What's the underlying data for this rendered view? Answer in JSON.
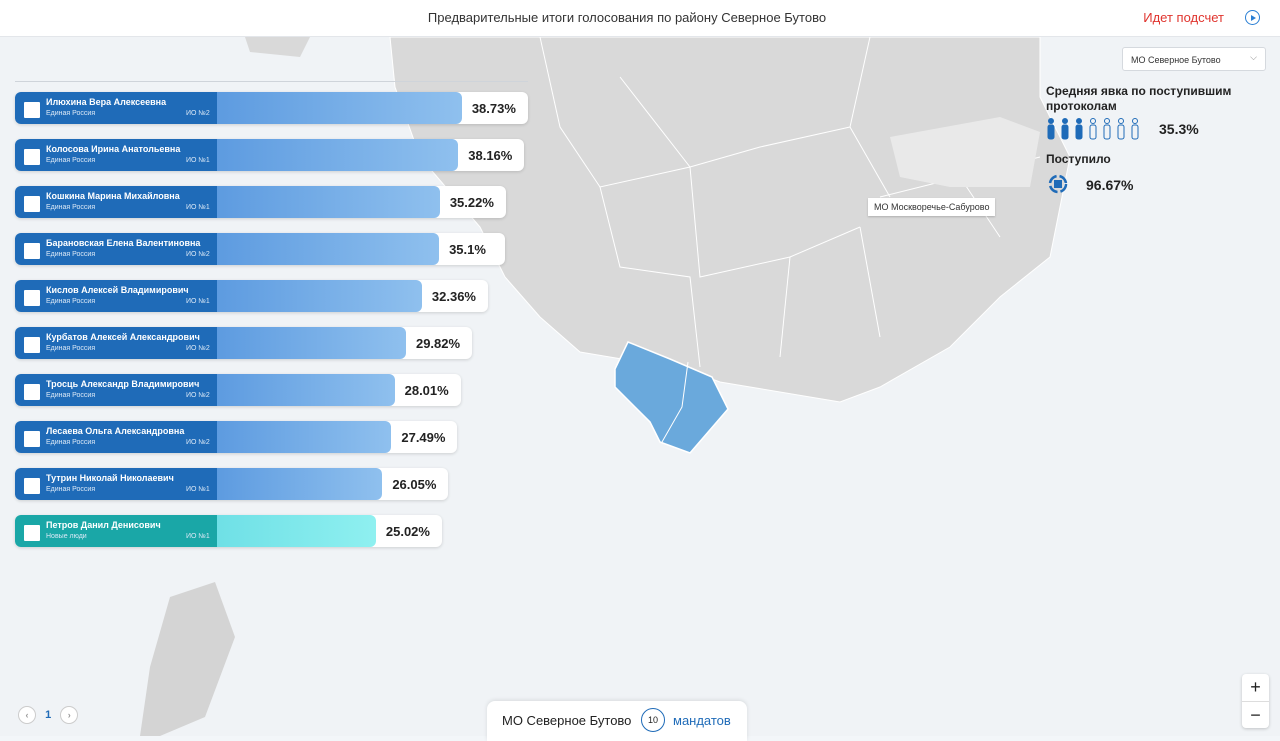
{
  "header": {
    "title": "Предварительные итоги голосования по району Северное Бутово",
    "status": "Идет подсчет"
  },
  "candidates": [
    {
      "name": "Илюхина Вера Алексеевна",
      "party": "Единая Россия",
      "district": "ИО №2",
      "value": 38.73,
      "value_label": "38.73%",
      "color": "#1f6bb8"
    },
    {
      "name": "Колосова Ирина Анатольевна",
      "party": "Единая Россия",
      "district": "ИО №1",
      "value": 38.16,
      "value_label": "38.16%",
      "color": "#1f6bb8"
    },
    {
      "name": "Кошкина Марина Михайловна",
      "party": "Единая Россия",
      "district": "ИО №1",
      "value": 35.22,
      "value_label": "35.22%",
      "color": "#1f6bb8"
    },
    {
      "name": "Барановская Елена Валентиновна",
      "party": "Единая Россия",
      "district": "ИО №2",
      "value": 35.1,
      "value_label": "35.1%",
      "color": "#1f6bb8"
    },
    {
      "name": "Кислов Алексей Владимирович",
      "party": "Единая Россия",
      "district": "ИО №1",
      "value": 32.36,
      "value_label": "32.36%",
      "color": "#1f6bb8"
    },
    {
      "name": "Курбатов Алексей Александрович",
      "party": "Единая Россия",
      "district": "ИО №2",
      "value": 29.82,
      "value_label": "29.82%",
      "color": "#1f6bb8"
    },
    {
      "name": "Тросць Александр Владимирович",
      "party": "Единая Россия",
      "district": "ИО №2",
      "value": 28.01,
      "value_label": "28.01%",
      "color": "#1f6bb8"
    },
    {
      "name": "Лесаева Ольга Александровна",
      "party": "Единая Россия",
      "district": "ИО №2",
      "value": 27.49,
      "value_label": "27.49%",
      "color": "#1f6bb8"
    },
    {
      "name": "Тутрин Николай Николаевич",
      "party": "Единая Россия",
      "district": "ИО №1",
      "value": 26.05,
      "value_label": "26.05%",
      "color": "#1f6bb8"
    },
    {
      "name": "Петров Данил Денисович",
      "party": "Новые люди",
      "district": "ИО №1",
      "value": 25.02,
      "value_label": "25.02%",
      "color": "#1aa7a7"
    }
  ],
  "panel": {
    "selector": "МО Северное Бутово",
    "turnout_title": "Средняя явка по поступившим протоколам",
    "turnout": "35.3%",
    "received_title": "Поступило",
    "received": "96.67%"
  },
  "map": {
    "label": "МО Москворечье-Сабурово"
  },
  "footer": {
    "district": "МО Северное Бутово",
    "mandates": "10",
    "mandates_label": "мандатов",
    "page": "1"
  },
  "zoom": {
    "in": "+",
    "out": "−"
  }
}
